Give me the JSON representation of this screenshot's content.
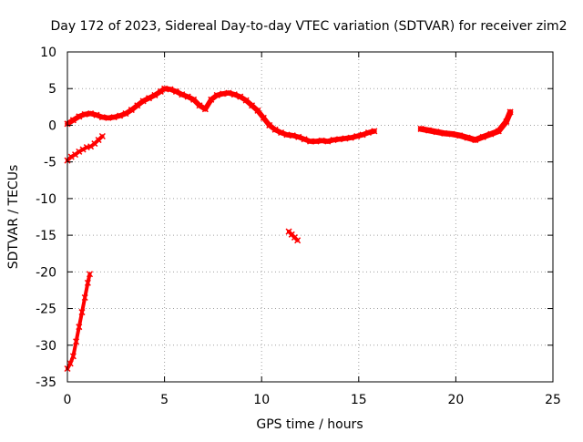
{
  "chart_data": {
    "type": "scatter",
    "title": "Day 172 of 2023, Sidereal Day-to-day VTEC variation (SDTVAR) for receiver zim2",
    "xlabel": "GPS time / hours",
    "ylabel": "SDTVAR / TECUs",
    "xlim": [
      0,
      25
    ],
    "ylim": [
      -35,
      10
    ],
    "xticks": [
      0,
      5,
      10,
      15,
      20,
      25
    ],
    "yticks": [
      10,
      5,
      0,
      -5,
      -10,
      -15,
      -20,
      -25,
      -30,
      -35
    ],
    "grid": true,
    "marker_color": "#ff0000",
    "series": [
      {
        "name": "main-track",
        "x": [
          0.0,
          0.3,
          0.6,
          0.9,
          1.2,
          1.5,
          1.8,
          2.1,
          2.4,
          2.7,
          3.0,
          3.3,
          3.6,
          3.9,
          4.2,
          4.5,
          4.8,
          5.0,
          5.3,
          5.6,
          5.9,
          6.2,
          6.5,
          6.8,
          7.1,
          7.4,
          7.7,
          8.0,
          8.3,
          8.6,
          8.9,
          9.2,
          9.5,
          9.8,
          10.1,
          10.4,
          10.7,
          11.0,
          11.3,
          11.6,
          11.9,
          12.2,
          12.5,
          12.8,
          13.1,
          13.4,
          13.7,
          14.0,
          14.3,
          14.6,
          14.9,
          15.2,
          15.5,
          15.8
        ],
        "y": [
          0.2,
          0.7,
          1.2,
          1.5,
          1.6,
          1.4,
          1.1,
          1.0,
          1.1,
          1.3,
          1.6,
          2.1,
          2.7,
          3.3,
          3.7,
          4.1,
          4.6,
          5.0,
          4.9,
          4.6,
          4.2,
          3.9,
          3.5,
          2.7,
          2.2,
          3.5,
          4.1,
          4.3,
          4.4,
          4.2,
          3.9,
          3.4,
          2.7,
          2.0,
          1.0,
          0.0,
          -0.6,
          -1.0,
          -1.3,
          -1.4,
          -1.6,
          -1.9,
          -2.2,
          -2.2,
          -2.1,
          -2.2,
          -2.0,
          -1.9,
          -1.8,
          -1.7,
          -1.5,
          -1.3,
          -1.0,
          -0.8
        ],
        "spread": 0.7
      },
      {
        "name": "early-lower-track",
        "x": [
          0.0,
          0.2,
          0.4,
          0.6,
          0.8,
          1.0,
          1.2,
          1.4,
          1.6,
          1.8
        ],
        "y": [
          -4.8,
          -4.3,
          -4.0,
          -3.6,
          -3.3,
          -3.0,
          -2.9,
          -2.5,
          -2.0,
          -1.5
        ],
        "spread": 0.4
      },
      {
        "name": "late-track",
        "x": [
          18.2,
          18.6,
          19.0,
          19.4,
          19.8,
          20.2,
          20.6,
          21.0,
          21.4,
          21.8,
          22.2,
          22.6,
          22.8
        ],
        "y": [
          -0.5,
          -0.7,
          -0.9,
          -1.1,
          -1.2,
          -1.4,
          -1.7,
          -2.0,
          -1.6,
          -1.2,
          -0.8,
          0.5,
          1.8
        ],
        "spread": 0.8
      },
      {
        "name": "isolated-segment",
        "x": [
          11.4,
          11.55,
          11.7,
          11.85
        ],
        "y": [
          -14.5,
          -14.9,
          -15.3,
          -15.7
        ],
        "spread": 0.3
      },
      {
        "name": "steep-rise",
        "x": [
          0.0,
          0.15,
          0.3,
          0.45,
          0.6,
          0.75,
          0.9,
          1.05,
          1.15
        ],
        "y": [
          -33.2,
          -32.5,
          -31.5,
          -29.5,
          -27.5,
          -25.5,
          -23.5,
          -21.5,
          -20.3
        ],
        "spread": 0.4
      }
    ]
  }
}
